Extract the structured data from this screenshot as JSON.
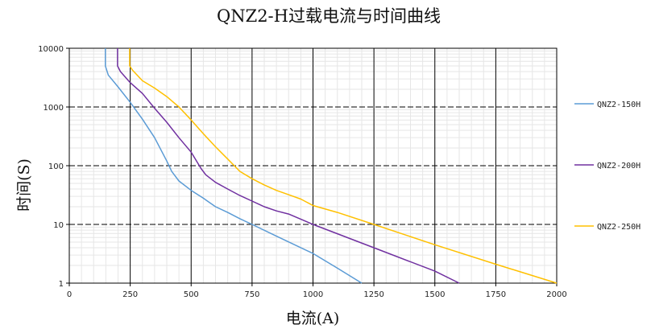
{
  "chart_data": {
    "type": "line",
    "title": "QNZ2-H过载电流与时间曲线",
    "xlabel": "电流(A)",
    "ylabel": "时间(S)",
    "xlim": [
      0,
      2000
    ],
    "ylim": [
      1,
      10000
    ],
    "yscale": "log",
    "x_ticks": [
      "0",
      "250",
      "500",
      "750",
      "1000",
      "1250",
      "1500",
      "1750",
      "2000"
    ],
    "y_ticks": [
      "1",
      "10",
      "100",
      "1000",
      "10000"
    ],
    "grid": true,
    "legend_position": "right",
    "series": [
      {
        "name": "QNZ2-150H",
        "color": "#5b9bd5",
        "points": [
          [
            148,
            10000
          ],
          [
            148,
            5000
          ],
          [
            160,
            3500
          ],
          [
            200,
            2200
          ],
          [
            250,
            1200
          ],
          [
            300,
            620
          ],
          [
            350,
            300
          ],
          [
            400,
            120
          ],
          [
            420,
            80
          ],
          [
            450,
            55
          ],
          [
            500,
            38
          ],
          [
            550,
            28
          ],
          [
            600,
            20
          ],
          [
            650,
            16
          ],
          [
            700,
            12.5
          ],
          [
            750,
            10
          ],
          [
            850,
            6.3
          ],
          [
            1000,
            3.2
          ],
          [
            1100,
            1.8
          ],
          [
            1200,
            1
          ]
        ]
      },
      {
        "name": "QNZ2-200H",
        "color": "#7030a0",
        "points": [
          [
            198,
            10000
          ],
          [
            198,
            5000
          ],
          [
            210,
            4000
          ],
          [
            250,
            2600
          ],
          [
            300,
            1700
          ],
          [
            350,
            950
          ],
          [
            400,
            550
          ],
          [
            450,
            300
          ],
          [
            500,
            170
          ],
          [
            540,
            90
          ],
          [
            560,
            70
          ],
          [
            600,
            52
          ],
          [
            650,
            40
          ],
          [
            700,
            31
          ],
          [
            750,
            25
          ],
          [
            800,
            20
          ],
          [
            850,
            17
          ],
          [
            900,
            15
          ],
          [
            1000,
            10
          ],
          [
            1250,
            4
          ],
          [
            1500,
            1.6
          ],
          [
            1600,
            1
          ]
        ]
      },
      {
        "name": "QNZ2-250H",
        "color": "#ffc000",
        "points": [
          [
            248,
            10000
          ],
          [
            248,
            5000
          ],
          [
            260,
            4200
          ],
          [
            300,
            2800
          ],
          [
            350,
            2100
          ],
          [
            400,
            1500
          ],
          [
            450,
            1000
          ],
          [
            500,
            600
          ],
          [
            550,
            350
          ],
          [
            600,
            210
          ],
          [
            650,
            130
          ],
          [
            700,
            80
          ],
          [
            750,
            60
          ],
          [
            800,
            47
          ],
          [
            850,
            38
          ],
          [
            900,
            32
          ],
          [
            950,
            27
          ],
          [
            1000,
            21
          ],
          [
            1100,
            16
          ],
          [
            1250,
            10
          ],
          [
            1500,
            4.5
          ],
          [
            1750,
            2.1
          ],
          [
            2000,
            1
          ]
        ]
      }
    ]
  }
}
